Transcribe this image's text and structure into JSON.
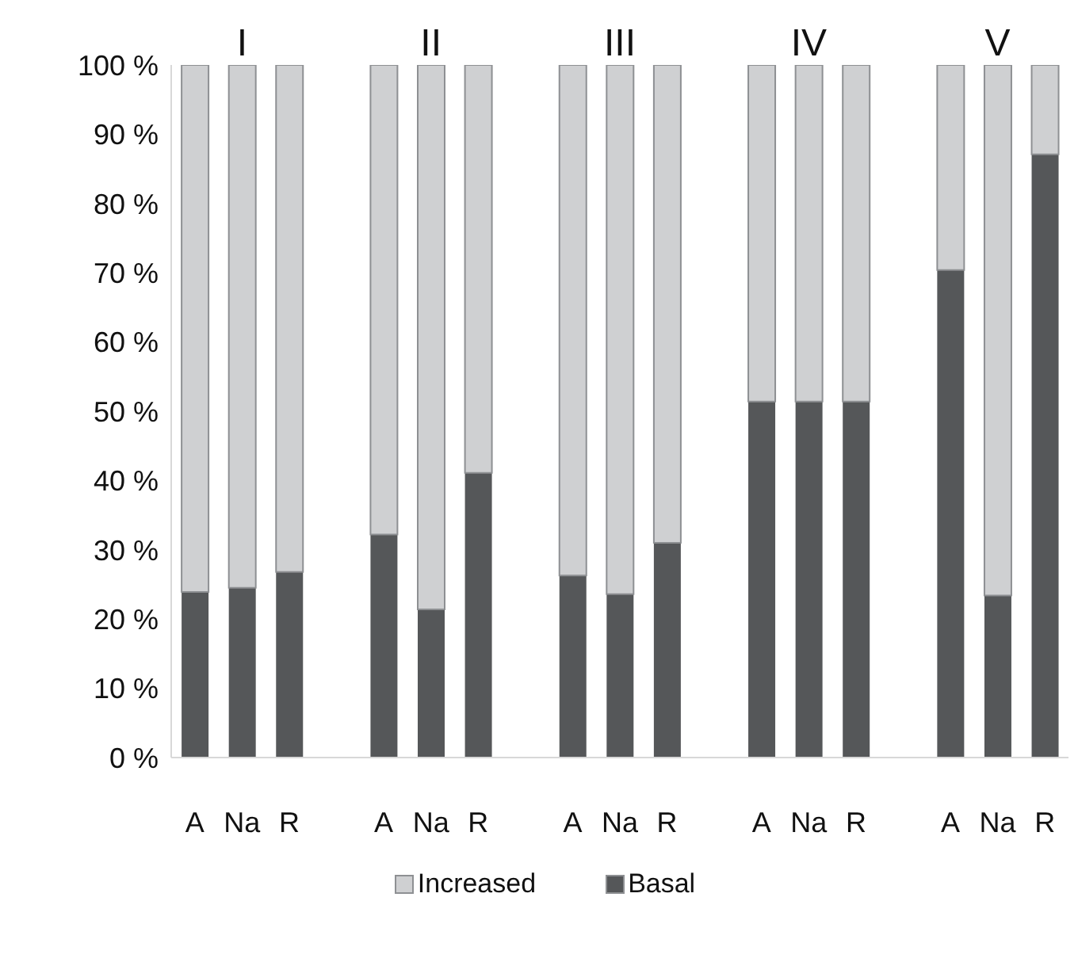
{
  "chart_data": {
    "type": "bar",
    "stacked": true,
    "categories": [
      "A",
      "Na",
      "R",
      null,
      "A",
      "Na",
      "R",
      null,
      "A",
      "Na",
      "R",
      null,
      "A",
      "Na",
      "R",
      null,
      "A",
      "Na",
      "R"
    ],
    "series": [
      {
        "name": "Basal",
        "color": "#555759",
        "values": [
          23.9,
          24.5,
          26.8,
          null,
          32.2,
          21.4,
          41.1,
          null,
          26.3,
          23.6,
          31.0,
          null,
          51.4,
          51.4,
          51.4,
          null,
          70.4,
          23.4,
          87.1
        ]
      },
      {
        "name": "Increased",
        "color": "#cfd0d2",
        "values": [
          76.1,
          75.5,
          73.2,
          null,
          67.8,
          78.6,
          58.9,
          null,
          73.7,
          76.4,
          69.0,
          null,
          48.6,
          48.6,
          48.6,
          null,
          29.6,
          76.6,
          12.9
        ]
      }
    ],
    "annotations": [
      "I",
      "II",
      "III",
      "IV",
      "V"
    ],
    "ylim": [
      0,
      100
    ],
    "yticks": [
      {
        "value": 0,
        "label": "0 %"
      },
      {
        "value": 10,
        "label": "10 %"
      },
      {
        "value": 20,
        "label": "20 %"
      },
      {
        "value": 30,
        "label": "30 %"
      },
      {
        "value": 40,
        "label": "40 %"
      },
      {
        "value": 50,
        "label": "50 %"
      },
      {
        "value": 60,
        "label": "60 %"
      },
      {
        "value": 70,
        "label": "70 %"
      },
      {
        "value": 80,
        "label": "80 %"
      },
      {
        "value": 90,
        "label": "90 %"
      },
      {
        "value": 100,
        "label": "100 %"
      }
    ],
    "grid": false,
    "legend": "bottom"
  }
}
